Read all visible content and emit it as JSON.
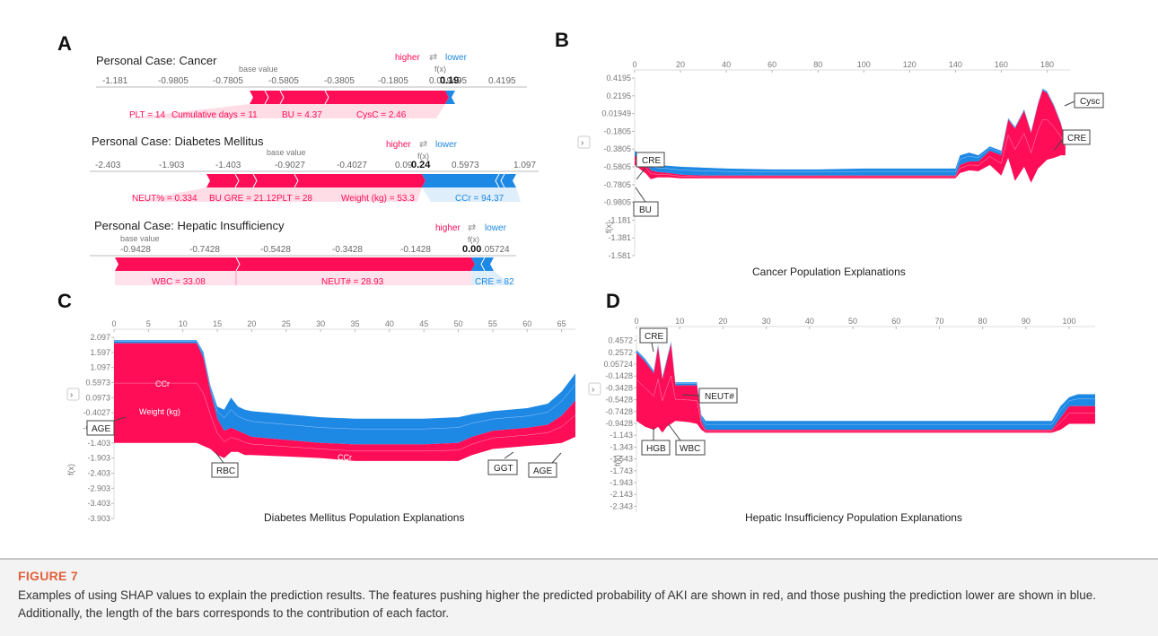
{
  "figure": {
    "label": "FIGURE 7",
    "caption": "Examples of using SHAP values to explain the prediction results. The features pushing higher the predicted probability of AKI are shown in red, and those pushing the prediction lower are shown in blue. Additionally, the length of the bars corresponds to the contribution of each factor."
  },
  "colors": {
    "higher": "#ff0d57",
    "lower": "#1e88e5"
  },
  "panel_a": {
    "letter": "A",
    "base_value_label": "base value",
    "fx_label": "f(x)",
    "higher_label": "higher",
    "arrows_label": "⇄",
    "lower_label": "lower"
  },
  "panel_b": {
    "letter": "B",
    "ylabel": "f(x)"
  },
  "panel_c": {
    "letter": "C",
    "ylabel": "f(x)"
  },
  "panel_d": {
    "letter": "D",
    "ylabel": "f(x)"
  },
  "chart_data": [
    {
      "type": "bar",
      "subtype": "shap-force",
      "title": "Personal Case: Cancer",
      "axis_ticks": [
        "-1.181",
        "-0.9805",
        "-0.7805",
        "-0.5805",
        "-0.3805",
        "-0.1805",
        "0.01949",
        "0.19",
        "95",
        "0.4195"
      ],
      "fx_value": "0.19",
      "higher": [
        {
          "label": "PLT = 14"
        },
        {
          "label": "Cumulative days = 11"
        },
        {
          "label": "BU = 4.37"
        },
        {
          "label": "CysC = 2.46"
        }
      ],
      "lower": []
    },
    {
      "type": "bar",
      "subtype": "shap-force",
      "title": "Personal Case: Diabetes Mellitus",
      "axis_ticks": [
        "-2.403",
        "-1.903",
        "-1.403",
        "-0.9027",
        "-0.4027",
        "0.09",
        "0.24",
        "0.5973",
        "1.097"
      ],
      "fx_value": "0.24",
      "higher": [
        {
          "label": "NEUT% = 0.334"
        },
        {
          "label": "BU GRE = 21.12"
        },
        {
          "label": "PLT = 28"
        },
        {
          "label": "Weight (kg) = 53.3"
        }
      ],
      "lower": [
        {
          "label": "CCr = 94.37"
        }
      ]
    },
    {
      "type": "bar",
      "subtype": "shap-force",
      "title": "Personal Case: Hepatic Insufficiency",
      "axis_ticks": [
        "-0.9428",
        "-0.7428",
        "-0.5428",
        "-0.3428",
        "-0.1428",
        "0.00",
        ".05724"
      ],
      "fx_value": "0.00",
      "higher": [
        {
          "label": "WBC = 33.08"
        },
        {
          "label": "NEUT# = 28.93"
        }
      ],
      "lower": [
        {
          "label": "CRE = 82"
        }
      ]
    },
    {
      "type": "area",
      "title": "Cancer Population Explanations",
      "x_ticks": [
        "0",
        "20",
        "40",
        "60",
        "80",
        "100",
        "120",
        "140",
        "160",
        "180"
      ],
      "y_ticks": [
        "0.4195",
        "0.2195",
        "0.01949",
        "-0.1805",
        "-0.3805",
        "-0.5805",
        "-0.7805",
        "-0.9805",
        "-1.181",
        "-1.381",
        "-1.581"
      ],
      "xlim": [
        0,
        190
      ],
      "ylim": [
        -1.581,
        0.4195
      ],
      "annotations": [
        "CRE",
        "BU",
        "Cysc",
        "CRE"
      ],
      "series": [
        {
          "key": "red",
          "x": [
            0,
            5,
            7,
            10,
            15,
            20,
            30,
            40,
            60,
            80,
            100,
            120,
            140,
            142,
            146,
            150,
            155,
            160,
            163,
            166,
            170,
            173,
            176,
            178,
            180,
            183,
            186,
            188
          ],
          "low": [
            -0.56,
            -0.66,
            -0.72,
            -0.7,
            -0.7,
            -0.71,
            -0.71,
            -0.71,
            -0.71,
            -0.71,
            -0.71,
            -0.71,
            -0.71,
            -0.65,
            -0.62,
            -0.63,
            -0.56,
            -0.68,
            -0.48,
            -0.74,
            -0.58,
            -0.76,
            -0.6,
            -0.55,
            -0.5,
            -0.48,
            -0.45,
            -0.45
          ],
          "high": [
            -0.46,
            -0.55,
            -0.62,
            -0.64,
            -0.65,
            -0.67,
            -0.68,
            -0.68,
            -0.68,
            -0.68,
            -0.68,
            -0.68,
            -0.68,
            -0.56,
            -0.52,
            -0.52,
            -0.4,
            -0.45,
            -0.05,
            -0.15,
            0.05,
            -0.2,
            0.12,
            0.28,
            0.25,
            0.1,
            -0.1,
            -0.3
          ]
        },
        {
          "key": "blue",
          "x": [
            0,
            5,
            7,
            10,
            15,
            20,
            30,
            40,
            60,
            80,
            100,
            120,
            140,
            142,
            146,
            150,
            155,
            160,
            163,
            166,
            170,
            173,
            176,
            178,
            180,
            183,
            186,
            188
          ],
          "low": [
            -0.46,
            -0.55,
            -0.62,
            -0.64,
            -0.65,
            -0.67,
            -0.68,
            -0.68,
            -0.68,
            -0.68,
            -0.68,
            -0.68,
            -0.68,
            -0.56,
            -0.52,
            -0.52,
            -0.4,
            -0.45,
            -0.05,
            -0.15,
            0.05,
            -0.2,
            0.12,
            0.28,
            0.25,
            0.1,
            -0.1,
            -0.3
          ],
          "high": [
            -0.4,
            -0.48,
            -0.55,
            -0.56,
            -0.57,
            -0.58,
            -0.59,
            -0.6,
            -0.61,
            -0.61,
            -0.6,
            -0.6,
            -0.6,
            -0.45,
            -0.42,
            -0.45,
            -0.35,
            -0.4,
            -0.03,
            -0.13,
            0.07,
            -0.18,
            0.14,
            0.3,
            0.27,
            0.12,
            -0.08,
            -0.28
          ]
        }
      ]
    },
    {
      "type": "area",
      "title": "Diabetes Mellitus Population Explanations",
      "x_ticks": [
        "0",
        "5",
        "10",
        "15",
        "20",
        "25",
        "30",
        "35",
        "40",
        "45",
        "50",
        "55",
        "60",
        "65"
      ],
      "y_ticks": [
        "2.097",
        "1.597",
        "1.097",
        "0.5973",
        "0.0973",
        "-0.4027",
        "-0.9027",
        "-1.403",
        "-1.903",
        "-2.403",
        "-2.903",
        "-3.403",
        "-3.903"
      ],
      "xlim": [
        0,
        67
      ],
      "ylim": [
        -3.903,
        2.097
      ],
      "area_labels": [
        "CCr",
        "Weight (kg)",
        "CCr"
      ],
      "annotations": [
        "AGE",
        "RBC",
        "GGT",
        "AGE"
      ],
      "series": [
        {
          "key": "red",
          "x": [
            0,
            12,
            13,
            14,
            15,
            16,
            17,
            18,
            19,
            20,
            25,
            30,
            35,
            40,
            45,
            50,
            52,
            55,
            60,
            63,
            65,
            67
          ],
          "low": [
            -1.4,
            -1.4,
            -1.5,
            -1.6,
            -1.8,
            -1.9,
            -1.7,
            -1.7,
            -1.8,
            -1.8,
            -1.85,
            -1.9,
            -2.0,
            -2.0,
            -2.0,
            -2.0,
            -1.8,
            -1.6,
            -1.5,
            -1.45,
            -1.4,
            -1.2
          ],
          "high": [
            1.9,
            1.9,
            1.4,
            0.3,
            -0.6,
            -1.0,
            -0.9,
            -1.0,
            -1.1,
            -1.2,
            -1.3,
            -1.4,
            -1.45,
            -1.45,
            -1.45,
            -1.4,
            -1.2,
            -1.0,
            -0.9,
            -0.8,
            -0.5,
            0.0
          ]
        },
        {
          "key": "blue",
          "x": [
            0,
            12,
            13,
            14,
            15,
            16,
            17,
            18,
            19,
            20,
            25,
            30,
            35,
            40,
            45,
            50,
            52,
            55,
            60,
            63,
            65,
            67
          ],
          "low": [
            1.9,
            1.9,
            1.4,
            0.3,
            -0.6,
            -1.0,
            -0.9,
            -1.0,
            -1.1,
            -1.2,
            -1.3,
            -1.4,
            -1.45,
            -1.45,
            -1.45,
            -1.4,
            -1.2,
            -1.0,
            -0.9,
            -0.8,
            -0.5,
            0.0
          ],
          "high": [
            2.0,
            2.0,
            1.6,
            0.5,
            -0.2,
            -0.3,
            0.1,
            -0.2,
            -0.3,
            -0.35,
            -0.45,
            -0.55,
            -0.6,
            -0.6,
            -0.6,
            -0.55,
            -0.45,
            -0.35,
            -0.25,
            -0.1,
            0.3,
            0.9
          ]
        }
      ]
    },
    {
      "type": "area",
      "title": "Hepatic Insufficiency Population Explanations",
      "x_ticks": [
        "0",
        "10",
        "20",
        "30",
        "40",
        "50",
        "60",
        "70",
        "80",
        "90",
        "100"
      ],
      "y_ticks": [
        "0.4572",
        "0.2572",
        "0.05724",
        "-0.1428",
        "-0.3428",
        "-0.5428",
        "-0.7428",
        "-0.9428",
        "-1.143",
        "-1.343",
        "-1.543",
        "-1.743",
        "-1.943",
        "-2.143",
        "-2.343"
      ],
      "xlim": [
        0,
        106
      ],
      "ylim": [
        -2.443,
        0.5572
      ],
      "annotations": [
        "CRE",
        "NEUT#",
        "HGB",
        "WBC"
      ],
      "series": [
        {
          "key": "red",
          "x": [
            0,
            2,
            4,
            5,
            6,
            7,
            8,
            9,
            12,
            14,
            15,
            16,
            20,
            40,
            60,
            80,
            96,
            98,
            100,
            102,
            106
          ],
          "low": [
            -0.9,
            -1.0,
            -1.05,
            -1.0,
            -1.1,
            -1.0,
            -0.95,
            -0.9,
            -0.92,
            -0.95,
            -1.05,
            -1.1,
            -1.1,
            -1.1,
            -1.1,
            -1.1,
            -1.1,
            -1.05,
            -0.95,
            -0.95,
            -0.95
          ],
          "high": [
            0.25,
            0.1,
            -0.1,
            0.35,
            -0.2,
            0.1,
            0.4,
            -0.3,
            -0.3,
            -0.3,
            -0.9,
            -1.05,
            -1.05,
            -1.05,
            -1.05,
            -1.05,
            -1.05,
            -0.85,
            -0.65,
            -0.65,
            -0.65
          ]
        },
        {
          "key": "blue",
          "x": [
            0,
            2,
            4,
            5,
            6,
            7,
            8,
            9,
            12,
            14,
            15,
            16,
            20,
            40,
            60,
            80,
            96,
            98,
            100,
            102,
            106
          ],
          "low": [
            0.25,
            0.1,
            -0.1,
            0.35,
            -0.2,
            0.1,
            0.4,
            -0.3,
            -0.3,
            -0.3,
            -0.9,
            -1.05,
            -1.05,
            -1.05,
            -1.05,
            -1.05,
            -1.05,
            -0.85,
            -0.65,
            -0.65,
            -0.65
          ],
          "high": [
            0.3,
            0.15,
            -0.05,
            0.4,
            -0.15,
            0.15,
            0.45,
            -0.25,
            -0.25,
            -0.25,
            -0.8,
            -0.9,
            -0.9,
            -0.9,
            -0.9,
            -0.9,
            -0.9,
            -0.65,
            -0.5,
            -0.45,
            -0.45
          ]
        }
      ]
    }
  ]
}
